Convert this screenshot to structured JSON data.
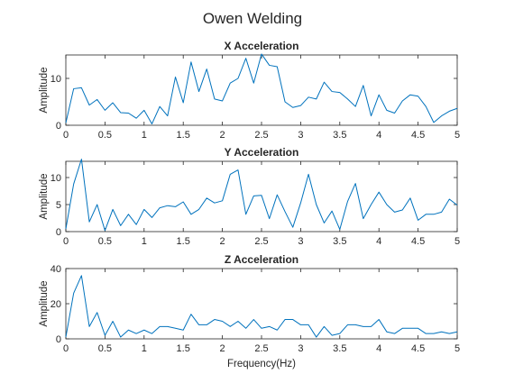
{
  "title": "Owen Welding",
  "chart_data": [
    {
      "type": "line",
      "title": "X Acceleration",
      "xlabel": "",
      "ylabel": "Amplitude",
      "xlim": [
        0,
        5
      ],
      "ylim": [
        0,
        15
      ],
      "xticks": [
        "0",
        "0.5",
        "1",
        "1.5",
        "2",
        "2.5",
        "3",
        "3.5",
        "4",
        "4.5",
        "5"
      ],
      "yticks": [
        "0",
        "10"
      ],
      "color": "#0072BD",
      "x": [
        0,
        0.1,
        0.2,
        0.3,
        0.4,
        0.5,
        0.6,
        0.7,
        0.8,
        0.9,
        1.0,
        1.1,
        1.2,
        1.3,
        1.4,
        1.5,
        1.6,
        1.7,
        1.8,
        1.9,
        2.0,
        2.1,
        2.2,
        2.3,
        2.4,
        2.5,
        2.6,
        2.7,
        2.8,
        2.9,
        3.0,
        3.1,
        3.2,
        3.3,
        3.4,
        3.5,
        3.6,
        3.7,
        3.8,
        3.9,
        4.0,
        4.1,
        4.2,
        4.3,
        4.4,
        4.5,
        4.6,
        4.7,
        4.8,
        4.9,
        5.0
      ],
      "y": [
        0.5,
        7.8,
        8.0,
        4.3,
        5.5,
        3.2,
        4.8,
        2.7,
        2.6,
        1.5,
        3.2,
        0.3,
        4.0,
        2.0,
        10.3,
        4.8,
        13.5,
        7.2,
        12.0,
        5.6,
        5.2,
        9.0,
        10.0,
        14.3,
        9.0,
        15.2,
        12.8,
        12.5,
        5.0,
        3.8,
        4.2,
        6.0,
        5.6,
        9.2,
        7.2,
        7.0,
        5.6,
        4.0,
        8.5,
        2.0,
        6.5,
        3.2,
        2.6,
        5.2,
        6.5,
        6.2,
        4.0,
        0.6,
        2.0,
        3.0,
        3.6
      ]
    },
    {
      "type": "line",
      "title": "Y Acceleration",
      "xlabel": "",
      "ylabel": "Amplitude",
      "xlim": [
        0,
        5
      ],
      "ylim": [
        0,
        13
      ],
      "xticks": [
        "0",
        "0.5",
        "1",
        "1.5",
        "2",
        "2.5",
        "3",
        "3.5",
        "4",
        "4.5",
        "5"
      ],
      "yticks": [
        "0",
        "5",
        "10"
      ],
      "color": "#0072BD",
      "x": [
        0,
        0.1,
        0.2,
        0.3,
        0.4,
        0.5,
        0.6,
        0.7,
        0.8,
        0.9,
        1.0,
        1.1,
        1.2,
        1.3,
        1.4,
        1.5,
        1.6,
        1.7,
        1.8,
        1.9,
        2.0,
        2.1,
        2.2,
        2.3,
        2.4,
        2.5,
        2.6,
        2.7,
        2.8,
        2.9,
        3.0,
        3.1,
        3.2,
        3.3,
        3.4,
        3.5,
        3.6,
        3.7,
        3.8,
        3.9,
        4.0,
        4.1,
        4.2,
        4.3,
        4.4,
        4.5,
        4.6,
        4.7,
        4.8,
        4.9,
        5.0
      ],
      "y": [
        0.5,
        8.8,
        13.4,
        1.8,
        5.0,
        0.2,
        4.1,
        1.1,
        3.2,
        1.3,
        4.1,
        2.6,
        4.4,
        4.8,
        4.6,
        5.5,
        3.2,
        4.1,
        6.2,
        5.3,
        5.7,
        10.6,
        11.4,
        3.2,
        6.6,
        6.7,
        2.4,
        6.8,
        3.7,
        0.8,
        5.3,
        10.6,
        5.0,
        1.6,
        3.8,
        0.4,
        5.6,
        8.9,
        2.4,
        5.0,
        7.3,
        5.0,
        3.6,
        4.0,
        6.2,
        2.1,
        3.2,
        3.2,
        3.6,
        6.0,
        4.9
      ]
    },
    {
      "type": "line",
      "title": "Z Acceleration",
      "xlabel": "Frequency(Hz)",
      "ylabel": "Amplitude",
      "xlim": [
        0,
        5
      ],
      "ylim": [
        0,
        40
      ],
      "xticks": [
        "0",
        "0.5",
        "1",
        "1.5",
        "2",
        "2.5",
        "3",
        "3.5",
        "4",
        "4.5",
        "5"
      ],
      "yticks": [
        "0",
        "20",
        "40"
      ],
      "color": "#0072BD",
      "x": [
        0,
        0.1,
        0.2,
        0.3,
        0.4,
        0.5,
        0.6,
        0.7,
        0.8,
        0.9,
        1.0,
        1.1,
        1.2,
        1.3,
        1.4,
        1.5,
        1.6,
        1.7,
        1.8,
        1.9,
        2.0,
        2.1,
        2.2,
        2.3,
        2.4,
        2.5,
        2.6,
        2.7,
        2.8,
        2.9,
        3.0,
        3.1,
        3.2,
        3.3,
        3.4,
        3.5,
        3.6,
        3.7,
        3.8,
        3.9,
        4.0,
        4.1,
        4.2,
        4.3,
        4.4,
        4.5,
        4.6,
        4.7,
        4.8,
        4.9,
        5.0
      ],
      "y": [
        1,
        26,
        36,
        7,
        15,
        2,
        10,
        1,
        5,
        3,
        5,
        3,
        7,
        7,
        6,
        5,
        14,
        8,
        8,
        11,
        10,
        7,
        10,
        6,
        11,
        6,
        7,
        5,
        11,
        11,
        8,
        8,
        1,
        7,
        2,
        3,
        8,
        8,
        7,
        7,
        11,
        4,
        3,
        6,
        6,
        6,
        3,
        3,
        4,
        3,
        4
      ]
    }
  ]
}
